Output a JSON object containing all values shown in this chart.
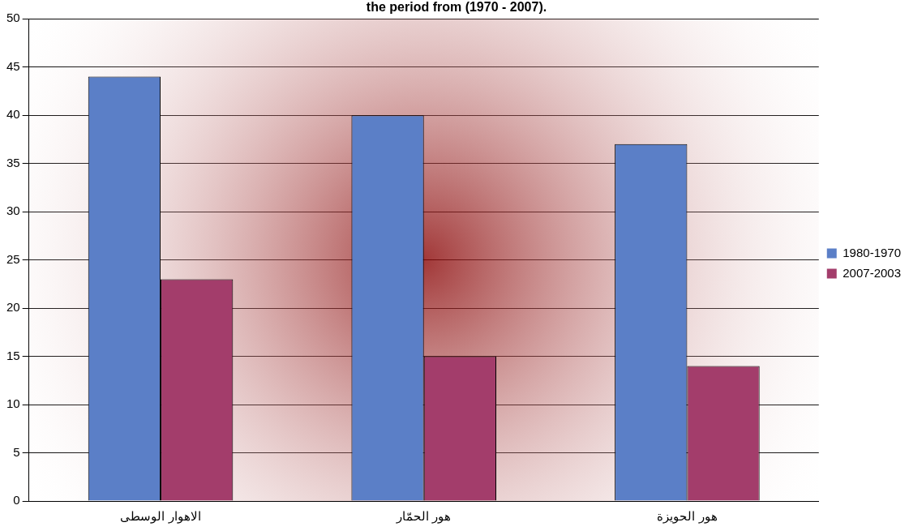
{
  "chart_data": {
    "type": "bar",
    "title": "the period from (1970 - 2007).",
    "categories": [
      "الاهوار الوسطى",
      "هور الحمّار",
      "هور الحويزة"
    ],
    "series": [
      {
        "name": "1980-1970",
        "color": "#5b7fc7",
        "values": [
          44,
          40,
          37
        ]
      },
      {
        "name": "2007-2003",
        "color": "#a33d6b",
        "values": [
          23,
          15,
          14
        ]
      }
    ],
    "ylim": [
      0,
      50
    ],
    "yticks": [
      0,
      5,
      10,
      15,
      20,
      25,
      30,
      35,
      40,
      45,
      50
    ],
    "grid": "y",
    "legend": "right"
  }
}
